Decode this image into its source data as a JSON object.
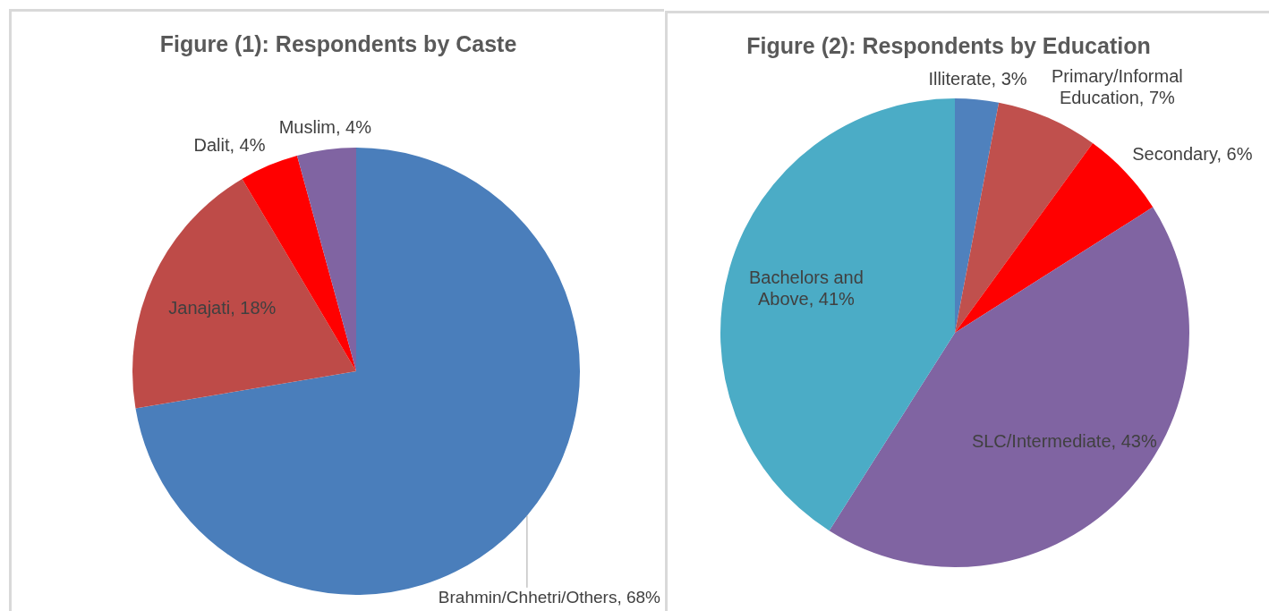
{
  "chart_data": [
    {
      "type": "pie",
      "title": "Figure (1): Respondents by Caste",
      "categories": [
        "Brahmin/Chhetri/Others",
        "Janajati",
        "Dalit",
        "Muslim"
      ],
      "values": [
        68,
        18,
        4,
        4
      ],
      "value_labels": [
        "68%",
        "18%",
        "4%",
        "4%"
      ],
      "colors": [
        "#4a7ebb",
        "#be4b48",
        "#ff0000",
        "#8064a2"
      ]
    },
    {
      "type": "pie",
      "title": "Figure (2): Respondents by Education",
      "categories": [
        "Illiterate",
        "Primary/Informal Education",
        "Secondary",
        "SLC/Intermediate",
        "Bachelors and Above"
      ],
      "values": [
        3,
        7,
        6,
        43,
        41
      ],
      "value_labels": [
        "3%",
        "7%",
        "6%",
        "43%",
        "41%"
      ],
      "colors": [
        "#4f81bd",
        "#c0504d",
        "#ff0000",
        "#8064a2",
        "#4bacc6"
      ]
    }
  ]
}
